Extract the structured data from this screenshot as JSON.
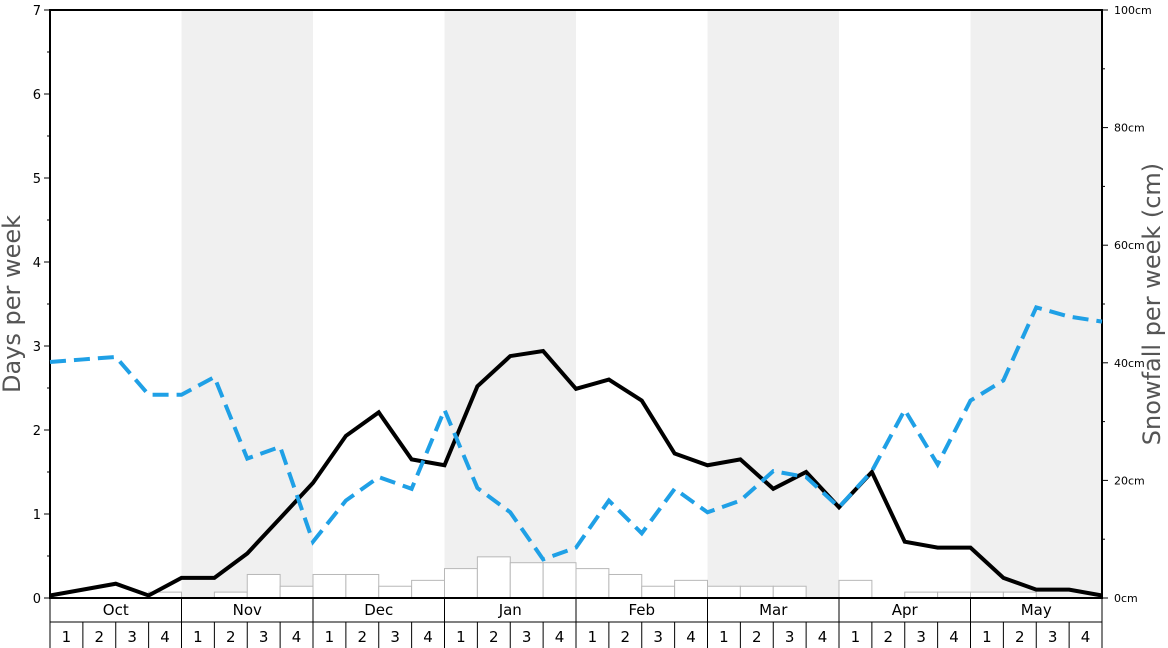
{
  "chart_data": {
    "type": "line",
    "months": [
      "Oct",
      "Nov",
      "Dec",
      "Jan",
      "Feb",
      "Mar",
      "Apr",
      "May"
    ],
    "weeks_per_month": [
      "1",
      "2",
      "3",
      "4"
    ],
    "left_axis": {
      "label": "Days per week",
      "range": [
        0,
        7
      ],
      "ticks": [
        0,
        1,
        2,
        3,
        4,
        5,
        6,
        7
      ]
    },
    "right_axis": {
      "label": "Snowfall per week (cm)",
      "range": [
        0,
        100
      ],
      "tick_labels": [
        "0cm",
        "20cm",
        "40cm",
        "60cm",
        "80cm",
        "100cm"
      ],
      "tick_values": [
        0,
        20,
        40,
        60,
        80,
        100
      ]
    },
    "grid": false,
    "alternating_month_shading": true,
    "series": [
      {
        "style": "solid",
        "axis": "left",
        "color": "#000000",
        "values": [
          0.03,
          0.1,
          0.17,
          0.03,
          0.24,
          0.24,
          0.53,
          0.95,
          1.37,
          1.93,
          2.21,
          1.65,
          1.58,
          2.52,
          2.88,
          2.94,
          2.49,
          2.6,
          2.35,
          1.72,
          1.58,
          1.65,
          1.3,
          1.5,
          1.08,
          1.5,
          0.67,
          0.6,
          0.6,
          0.24,
          0.1,
          0.1,
          0.03
        ]
      },
      {
        "style": "dashed",
        "axis": "left",
        "color": "#1fa0e6",
        "values": [
          2.81,
          2.84,
          2.87,
          2.42,
          2.42,
          2.63,
          1.66,
          1.8,
          0.67,
          1.16,
          1.44,
          1.3,
          2.24,
          1.31,
          1.02,
          0.46,
          0.6,
          1.16,
          0.77,
          1.3,
          1.02,
          1.16,
          1.51,
          1.44,
          1.08,
          1.51,
          2.24,
          1.59,
          2.35,
          2.59,
          3.46,
          3.35,
          3.29
        ]
      }
    ],
    "snowfall_bars": {
      "axis": "right",
      "values_cm": [
        0,
        0,
        0,
        1,
        0,
        1,
        4,
        2,
        4,
        4,
        2,
        3,
        5,
        7,
        6,
        6,
        5,
        4,
        2,
        3,
        2,
        2,
        2,
        0,
        3,
        0,
        1,
        1,
        1,
        1,
        0,
        0
      ]
    }
  }
}
